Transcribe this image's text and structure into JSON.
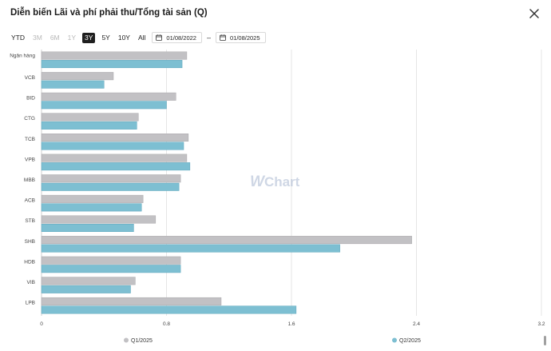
{
  "header": {
    "title": "Diễn biến Lãi và phí phải thu/Tổng tài sản (Q)"
  },
  "toolbar": {
    "ranges": [
      {
        "label": "YTD",
        "state": "normal"
      },
      {
        "label": "3M",
        "state": "disabled"
      },
      {
        "label": "6M",
        "state": "disabled"
      },
      {
        "label": "1Y",
        "state": "disabled"
      },
      {
        "label": "3Y",
        "state": "active"
      },
      {
        "label": "5Y",
        "state": "normal"
      },
      {
        "label": "10Y",
        "state": "normal"
      },
      {
        "label": "All",
        "state": "normal"
      }
    ],
    "date_from": "01/08/2022",
    "date_to": "01/08/2025",
    "separator": "–"
  },
  "watermark": {
    "w": "W",
    "text": "Chart"
  },
  "colors": {
    "q1": "#c2c1c4",
    "q2": "#7dbfd2",
    "grid": "#e6e6e6",
    "watermark": "#9fb0cc"
  },
  "chart_data": {
    "type": "bar",
    "orientation": "horizontal",
    "title": "Diễn biến Lãi và phí phải thu/Tổng tài sản (Q)",
    "categories": [
      "Ngân hàng",
      "VCB",
      "BID",
      "CTG",
      "TCB",
      "VPB",
      "MBB",
      "ACB",
      "STB",
      "SHB",
      "HDB",
      "VIB",
      "LPB"
    ],
    "series": [
      {
        "name": "Q1/2025",
        "values": [
          0.93,
          0.46,
          0.86,
          0.62,
          0.94,
          0.93,
          0.89,
          0.65,
          0.73,
          2.37,
          0.89,
          0.6,
          1.15
        ]
      },
      {
        "name": "Q2/2025",
        "values": [
          0.9,
          0.4,
          0.8,
          0.61,
          0.91,
          0.95,
          0.88,
          0.64,
          0.59,
          1.91,
          0.89,
          0.57,
          1.63
        ]
      }
    ],
    "xlim": [
      0,
      3.2
    ],
    "xticks": [
      "0",
      "0.8",
      "1.6",
      "2.4",
      "3.2"
    ],
    "xlabel": "",
    "ylabel": "",
    "grid": true,
    "legend": "bottom"
  }
}
